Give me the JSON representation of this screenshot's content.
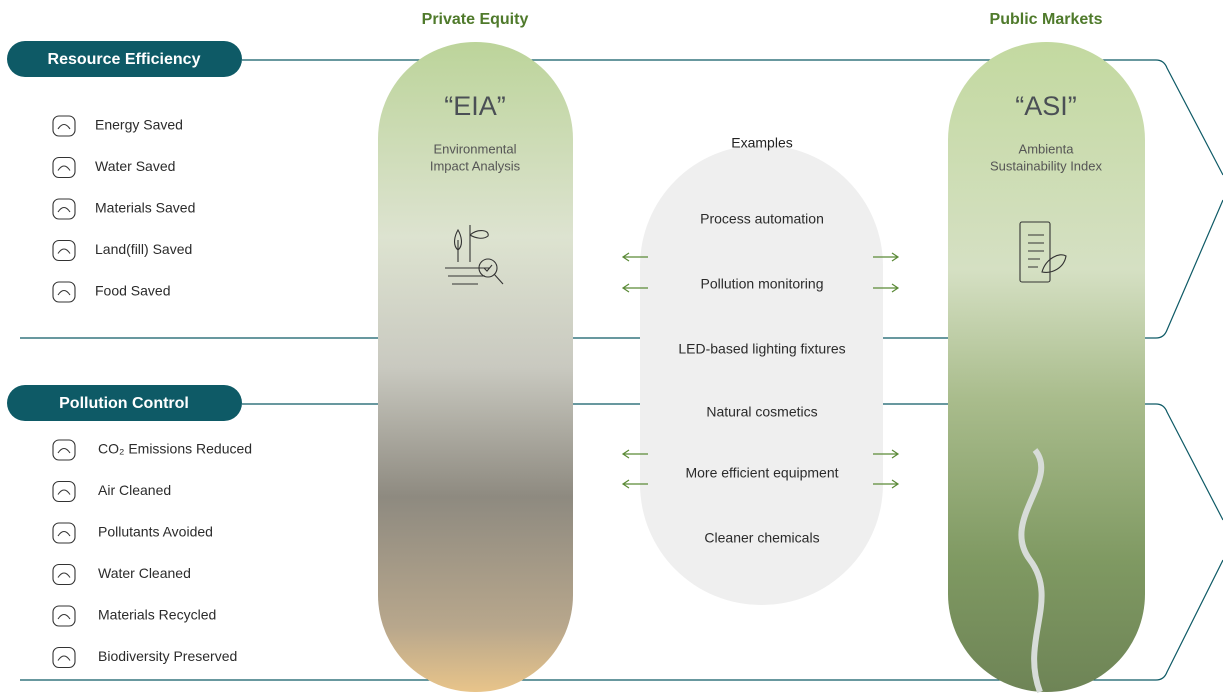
{
  "left_sections": [
    {
      "title": "Resource Efficiency",
      "items": [
        "Energy Saved",
        "Water Saved",
        "Materials Saved",
        "Land(fill) Saved",
        "Food Saved"
      ]
    },
    {
      "title": "Pollution Control",
      "items": [
        "CO₂ Emissions Reduced",
        "Air Cleaned",
        "Pollutants Avoided",
        "Water Cleaned",
        "Materials Recycled",
        "Biodiversity Preserved"
      ]
    }
  ],
  "columns": [
    {
      "heading": "Private Equity",
      "acronym": "“EIA”",
      "name_lines": [
        "Environmental",
        "Impact Analysis"
      ]
    },
    {
      "heading": "Public Markets",
      "acronym": "“ASI”",
      "name_lines": [
        "Ambienta",
        "Sustainability Index"
      ]
    }
  ],
  "examples": {
    "title": "Examples",
    "items": [
      "Process automation",
      "Pollution monitoring",
      "LED-based lighting fixtures",
      "Natural cosmetics",
      "More efficient equipment",
      "Cleaner chemicals"
    ]
  }
}
